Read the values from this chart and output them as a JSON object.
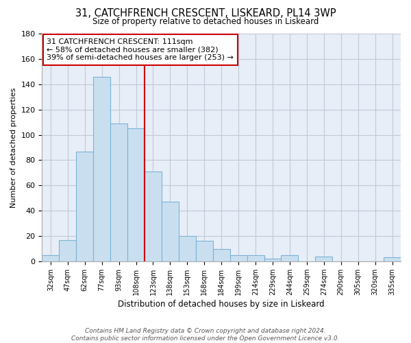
{
  "title": "31, CATCHFRENCH CRESCENT, LISKEARD, PL14 3WP",
  "subtitle": "Size of property relative to detached houses in Liskeard",
  "xlabel": "Distribution of detached houses by size in Liskeard",
  "ylabel": "Number of detached properties",
  "bar_labels": [
    "32sqm",
    "47sqm",
    "62sqm",
    "77sqm",
    "93sqm",
    "108sqm",
    "123sqm",
    "138sqm",
    "153sqm",
    "168sqm",
    "184sqm",
    "199sqm",
    "214sqm",
    "229sqm",
    "244sqm",
    "259sqm",
    "274sqm",
    "290sqm",
    "305sqm",
    "320sqm",
    "335sqm"
  ],
  "bar_values": [
    5,
    17,
    87,
    146,
    109,
    105,
    71,
    47,
    20,
    16,
    10,
    5,
    5,
    2,
    5,
    0,
    4,
    0,
    0,
    0,
    3
  ],
  "bar_color": "#c9dff0",
  "bar_edge_color": "#7ab3d4",
  "vline_color": "#cc0000",
  "annotation_line1": "31 CATCHFRENCH CRESCENT: 111sqm",
  "annotation_line2": "← 58% of detached houses are smaller (382)",
  "annotation_line3": "39% of semi-detached houses are larger (253) →",
  "annotation_box_color": "#ffffff",
  "annotation_box_edge": "#cc0000",
  "bg_color": "#e8eef7",
  "ylim": [
    0,
    180
  ],
  "yticks": [
    0,
    20,
    40,
    60,
    80,
    100,
    120,
    140,
    160,
    180
  ],
  "grid_color": "#c0c8d8",
  "footer_line1": "Contains HM Land Registry data © Crown copyright and database right 2024.",
  "footer_line2": "Contains public sector information licensed under the Open Government Licence v3.0."
}
